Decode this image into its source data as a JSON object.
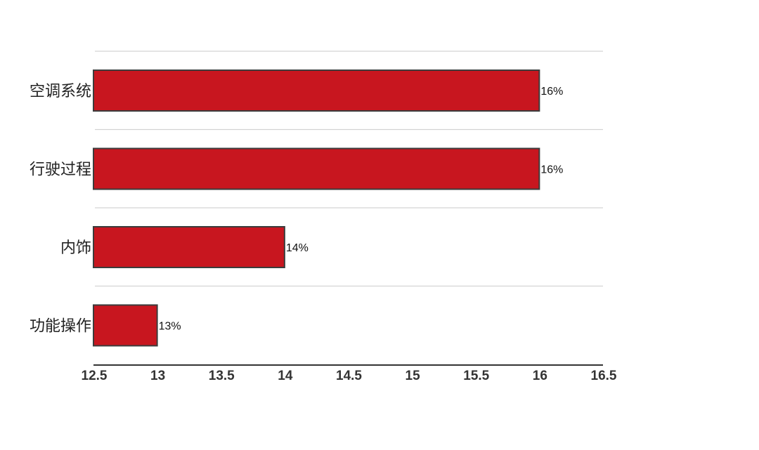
{
  "chart_data": {
    "type": "bar",
    "orientation": "horizontal",
    "title": "",
    "xlabel": "",
    "ylabel": "",
    "categories": [
      "空调系统",
      "行驶过程",
      "内饰",
      "功能操作"
    ],
    "values": [
      16,
      16,
      14,
      13
    ],
    "data_labels": [
      "16%",
      "16%",
      "14%",
      "13%"
    ],
    "xlim": [
      12.5,
      16.5
    ],
    "xticks": [
      12.5,
      13,
      13.5,
      14,
      14.5,
      15,
      15.5,
      16,
      16.5
    ],
    "xtick_labels": [
      "12.5",
      "13",
      "13.5",
      "14",
      "14.5",
      "15",
      "15.5",
      "16",
      "16.5"
    ],
    "grid": "horizontal",
    "legend": "none",
    "colors": {
      "bar_fill": "#c8161f",
      "bar_stroke": "#3c3c3c",
      "grid": "#d3d3d3",
      "axis": "#333333"
    }
  }
}
